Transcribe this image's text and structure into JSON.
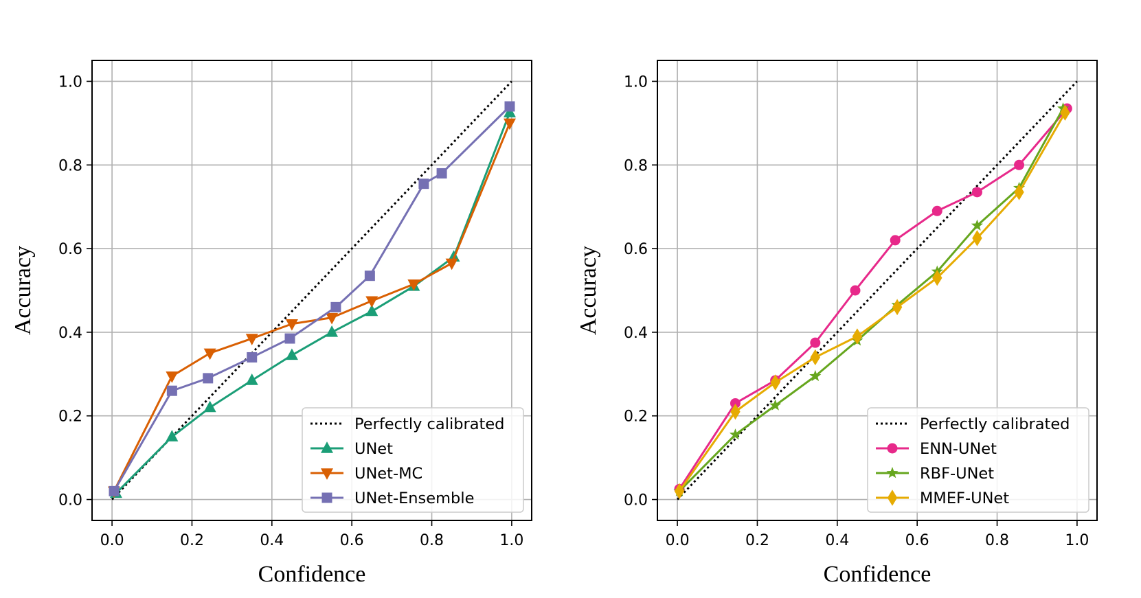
{
  "chart_data": [
    {
      "type": "line",
      "title": "",
      "xlabel": "Confidence",
      "ylabel": "Accuracy",
      "xlim": [
        -0.05,
        1.05
      ],
      "ylim": [
        -0.05,
        1.05
      ],
      "xticks": [
        "0.0",
        "0.2",
        "0.4",
        "0.6",
        "0.8",
        "1.0"
      ],
      "yticks": [
        "0.0",
        "0.2",
        "0.4",
        "0.6",
        "0.8",
        "1.0"
      ],
      "grid": true,
      "legend_position": "lower-right",
      "reference": {
        "name": "Perfectly calibrated",
        "x": [
          0,
          1
        ],
        "y": [
          0,
          1
        ],
        "color": "#000000",
        "style": "dotted"
      },
      "series": [
        {
          "name": "UNet",
          "marker": "triangle-up",
          "color": "#1b9e77",
          "x": [
            0.01,
            0.15,
            0.245,
            0.35,
            0.45,
            0.55,
            0.65,
            0.755,
            0.855,
            0.995
          ],
          "y": [
            0.015,
            0.15,
            0.22,
            0.285,
            0.345,
            0.4,
            0.45,
            0.51,
            0.58,
            0.925
          ]
        },
        {
          "name": "UNet-MC",
          "marker": "triangle-down",
          "color": "#d95f02",
          "x": [
            0.005,
            0.15,
            0.245,
            0.35,
            0.45,
            0.55,
            0.65,
            0.755,
            0.85,
            0.995
          ],
          "y": [
            0.02,
            0.295,
            0.35,
            0.385,
            0.42,
            0.435,
            0.475,
            0.515,
            0.565,
            0.9
          ]
        },
        {
          "name": "UNet-Ensemble",
          "marker": "square",
          "color": "#7570b3",
          "x": [
            0.005,
            0.15,
            0.24,
            0.35,
            0.445,
            0.56,
            0.645,
            0.78,
            0.825,
            0.995
          ],
          "y": [
            0.02,
            0.26,
            0.29,
            0.34,
            0.385,
            0.46,
            0.535,
            0.755,
            0.78,
            0.94
          ]
        }
      ]
    },
    {
      "type": "line",
      "title": "",
      "xlabel": "Confidence",
      "ylabel": "Accuracy",
      "xlim": [
        -0.05,
        1.05
      ],
      "ylim": [
        -0.05,
        1.05
      ],
      "xticks": [
        "0.0",
        "0.2",
        "0.4",
        "0.6",
        "0.8",
        "1.0"
      ],
      "yticks": [
        "0.0",
        "0.2",
        "0.4",
        "0.6",
        "0.8",
        "1.0"
      ],
      "grid": true,
      "legend_position": "lower-right",
      "reference": {
        "name": "Perfectly calibrated",
        "x": [
          0,
          1
        ],
        "y": [
          0,
          1
        ],
        "color": "#000000",
        "style": "dotted"
      },
      "series": [
        {
          "name": "ENN-UNet",
          "marker": "circle",
          "color": "#e7298a",
          "x": [
            0.005,
            0.145,
            0.245,
            0.345,
            0.445,
            0.545,
            0.65,
            0.75,
            0.855,
            0.975
          ],
          "y": [
            0.025,
            0.23,
            0.285,
            0.375,
            0.5,
            0.62,
            0.69,
            0.735,
            0.8,
            0.935
          ]
        },
        {
          "name": "RBF-UNet",
          "marker": "star",
          "color": "#66a61e",
          "x": [
            0.005,
            0.145,
            0.245,
            0.345,
            0.45,
            0.55,
            0.65,
            0.75,
            0.855,
            0.965
          ],
          "y": [
            0.02,
            0.155,
            0.225,
            0.295,
            0.38,
            0.465,
            0.545,
            0.655,
            0.745,
            0.935
          ]
        },
        {
          "name": "MMEF-UNet",
          "marker": "diamond",
          "color": "#e6ab02",
          "x": [
            0.005,
            0.145,
            0.245,
            0.345,
            0.45,
            0.55,
            0.65,
            0.75,
            0.855,
            0.97
          ],
          "y": [
            0.02,
            0.21,
            0.28,
            0.34,
            0.39,
            0.46,
            0.53,
            0.625,
            0.735,
            0.925
          ]
        }
      ]
    }
  ]
}
